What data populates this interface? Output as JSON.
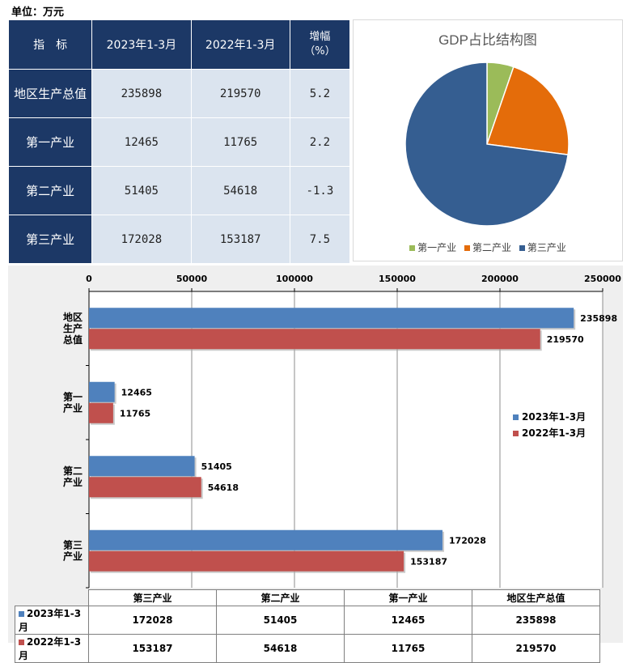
{
  "unit_label": "单位：万元",
  "table": {
    "headers": [
      "指　标",
      "2023年1-3月",
      "2022年1-3月"
    ],
    "growth_header": [
      "增幅",
      "（%）"
    ],
    "rows": [
      {
        "name": "地区生产总值",
        "v2023": "235898",
        "v2022": "219570",
        "growth": "5.2"
      },
      {
        "name": "第一产业",
        "v2023": "12465",
        "v2022": "11765",
        "growth": "2.2"
      },
      {
        "name": "第二产业",
        "v2023": "51405",
        "v2022": "54618",
        "growth": "-1.3"
      },
      {
        "name": "第三产业",
        "v2023": "172028",
        "v2022": "153187",
        "growth": "7.5"
      }
    ]
  },
  "colors": {
    "header_bg": "#1c3866",
    "cell_bg": "#dbe4ef",
    "pie_primary": "#9bbb59",
    "pie_secondary": "#e46c0a",
    "pie_tertiary": "#355e91",
    "bar_2023": "#4f81bd",
    "bar_2022": "#c0504d"
  },
  "chart_data": [
    {
      "type": "pie",
      "title": "GDP占比结构图",
      "categories": [
        "第一产业",
        "第二产业",
        "第三产业"
      ],
      "values": [
        12465,
        51405,
        172028
      ],
      "legend_position": "bottom"
    },
    {
      "type": "bar",
      "orientation": "horizontal",
      "categories": [
        "地区生产总值",
        "第一产业",
        "第二产业",
        "第三产业"
      ],
      "category_display": [
        [
          "地区",
          "生产",
          "总值"
        ],
        [
          "第一",
          "产业"
        ],
        [
          "第二",
          "产业"
        ],
        [
          "第三",
          "产业"
        ]
      ],
      "series": [
        {
          "name": "2023年1-3月",
          "values": [
            235898,
            12465,
            51405,
            172028
          ]
        },
        {
          "name": "2022年1-3月",
          "values": [
            219570,
            11765,
            54618,
            153187
          ]
        }
      ],
      "xlim": [
        0,
        250000
      ],
      "xticks": [
        0,
        50000,
        100000,
        150000,
        200000,
        250000
      ],
      "grid": true,
      "axis_position": "top",
      "legend_position": "right",
      "data_table": {
        "columns": [
          "第三产业",
          "第二产业",
          "第一产业",
          "地区生产总值"
        ],
        "rows": [
          {
            "name": "2023年1-3月",
            "values": [
              "172028",
              "51405",
              "12465",
              "235898"
            ]
          },
          {
            "name": "2022年1-3月",
            "values": [
              "153187",
              "54618",
              "11765",
              "219570"
            ]
          }
        ]
      }
    }
  ]
}
